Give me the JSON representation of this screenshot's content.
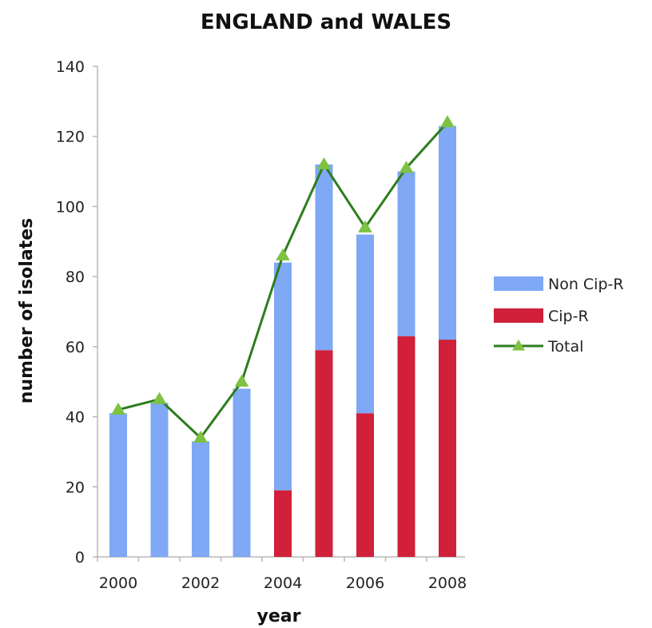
{
  "chart_data": {
    "type": "bar",
    "title": "ENGLAND and WALES",
    "xlabel": "year",
    "ylabel": "number of isolates",
    "categories": [
      2000,
      2001,
      2002,
      2003,
      2004,
      2005,
      2006,
      2007,
      2008
    ],
    "x_tick_labels": [
      "2000",
      "2002",
      "2004",
      "2006",
      "2008"
    ],
    "y_ticks": [
      0,
      20,
      40,
      60,
      80,
      100,
      120,
      140
    ],
    "ylim": [
      0,
      140
    ],
    "stacked": true,
    "grid": false,
    "legend_position": "right",
    "series": [
      {
        "name": "Cip-R",
        "type": "bar",
        "color": "#D0203A",
        "values": [
          0,
          0,
          0,
          0,
          19,
          59,
          41,
          63,
          62
        ]
      },
      {
        "name": "Non Cip-R",
        "type": "bar",
        "color": "#7FA8F5",
        "values": [
          41,
          44,
          33,
          48,
          65,
          53,
          51,
          47,
          61
        ]
      },
      {
        "name": "Total",
        "type": "line",
        "color": "#2E7D1E",
        "marker_color": "#7DC242",
        "marker": "triangle",
        "values": [
          42,
          45,
          34,
          50,
          86,
          112,
          94,
          111,
          124
        ]
      }
    ],
    "legend": [
      "Non Cip-R",
      "Cip-R",
      "Total"
    ]
  }
}
